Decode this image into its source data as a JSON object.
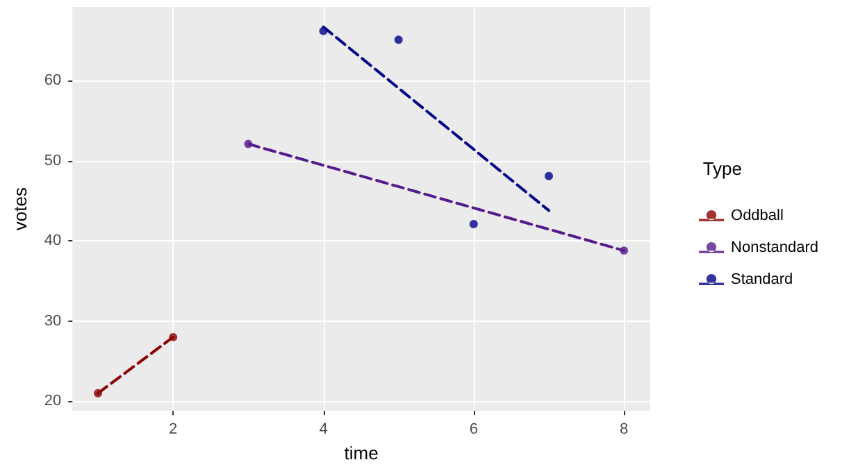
{
  "chart_data": {
    "type": "scatter",
    "xlabel": "time",
    "ylabel": "votes",
    "legend_title": "Type",
    "legend": "right",
    "grid": true,
    "marker": "circle",
    "xlim": [
      0.66,
      8.35
    ],
    "xticks": [
      2,
      4,
      6,
      8
    ],
    "ylim": [
      18.8,
      69.2
    ],
    "yticks": [
      20,
      30,
      40,
      50,
      60
    ],
    "series": [
      {
        "name": "Oddball",
        "color": "#8b0000",
        "x": [
          1,
          2
        ],
        "values": [
          21,
          28
        ]
      },
      {
        "name": "Nonstandard",
        "color": "#551a8b",
        "x": [
          3,
          8
        ],
        "values": [
          52.1,
          38.8
        ]
      },
      {
        "name": "Standard",
        "color": "#00008b",
        "x": [
          4,
          5,
          6,
          7
        ],
        "values": [
          66.2,
          65.1,
          42.1,
          48.1
        ]
      },
      {
        "type": "line",
        "color": "#8b0000",
        "x": [
          1,
          2
        ],
        "values": [
          21,
          28
        ],
        "line_style": "dashed",
        "marker": "none"
      },
      {
        "type": "line",
        "color": "#551a8b",
        "x": [
          3,
          8
        ],
        "values": [
          52.1,
          38.8
        ],
        "line_style": "dashed",
        "marker": "none"
      },
      {
        "type": "line",
        "color": "#00008b",
        "x": [
          4,
          7
        ],
        "values": [
          66.7,
          43.8
        ],
        "line_style": "dashed",
        "marker": "none"
      }
    ]
  }
}
